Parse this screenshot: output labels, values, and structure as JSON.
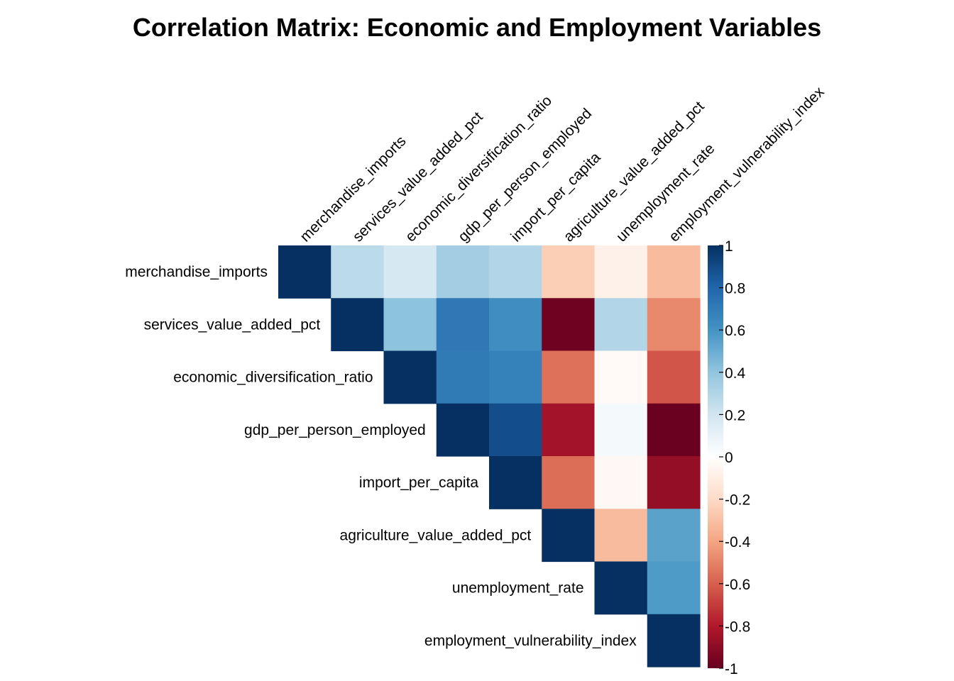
{
  "chart_data": {
    "type": "heatmap",
    "title": "Correlation Matrix: Economic and Employment Variables",
    "layout": "upper-triangle",
    "variables": [
      "merchandise_imports",
      "services_value_added_pct",
      "economic_diversification_ratio",
      "gdp_per_person_employed",
      "import_per_capita",
      "agriculture_value_added_pct",
      "unemployment_rate",
      "employment_vulnerability_index"
    ],
    "matrix": [
      [
        1.0,
        0.27,
        0.18,
        0.35,
        0.3,
        -0.25,
        -0.08,
        -0.32
      ],
      [
        null,
        1.0,
        0.41,
        0.72,
        0.62,
        -0.98,
        0.3,
        -0.48
      ],
      [
        null,
        null,
        1.0,
        0.71,
        0.68,
        -0.55,
        -0.03,
        -0.63
      ],
      [
        null,
        null,
        null,
        1.0,
        0.89,
        -0.84,
        0.05,
        -0.99
      ],
      [
        null,
        null,
        null,
        null,
        1.0,
        -0.56,
        -0.04,
        -0.88
      ],
      [
        null,
        null,
        null,
        null,
        null,
        1.0,
        -0.32,
        0.54
      ],
      [
        null,
        null,
        null,
        null,
        null,
        null,
        1.0,
        0.57
      ],
      [
        null,
        null,
        null,
        null,
        null,
        null,
        null,
        1.0
      ]
    ],
    "colorbar": {
      "range": [
        -1,
        1
      ],
      "tick_labels": [
        "1",
        "0.8",
        "0.6",
        "0.4",
        "0.2",
        "0",
        "-0.2",
        "-0.4",
        "-0.6",
        "-0.8",
        "-1"
      ],
      "tick_values": [
        1,
        0.8,
        0.6,
        0.4,
        0.2,
        0,
        -0.2,
        -0.4,
        -0.6,
        -0.8,
        -1
      ],
      "palette_negative_to_positive": [
        "#67001F",
        "#B2182B",
        "#D6604D",
        "#F4A582",
        "#FDDBC7",
        "#FFFFFF",
        "#D1E5F0",
        "#92C5DE",
        "#4393C3",
        "#2166AC",
        "#053061"
      ]
    },
    "legend_position": "right",
    "grid": false
  }
}
